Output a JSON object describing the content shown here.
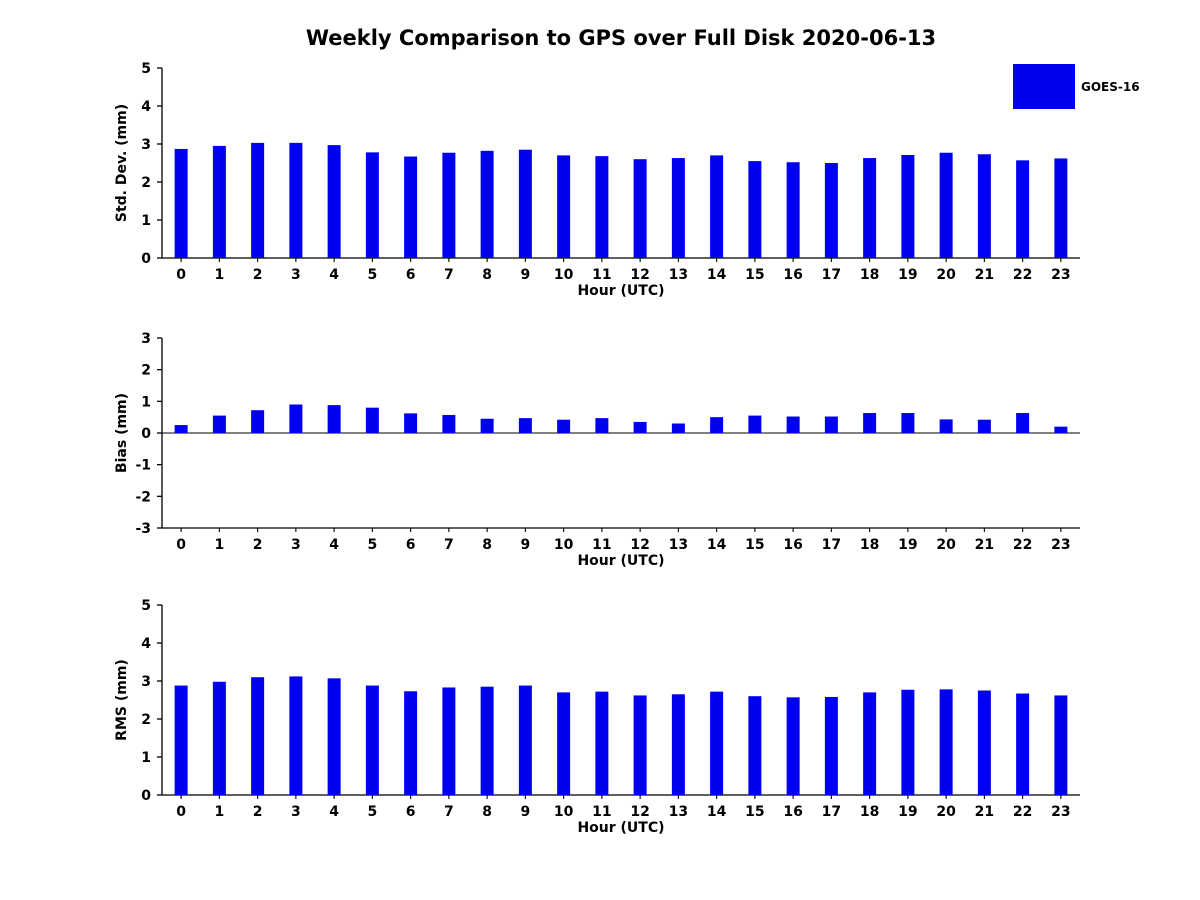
{
  "title": "Weekly Comparison to GPS over Full Disk 2020-06-13",
  "legend": {
    "label": "GOES-16",
    "color": "#0000F0"
  },
  "chart_data": [
    {
      "type": "bar",
      "name": "std-dev",
      "title": "",
      "xlabel": "Hour (UTC)",
      "ylabel": "Std. Dev. (mm)",
      "ylim": [
        0,
        5
      ],
      "yticks": [
        0,
        1,
        2,
        3,
        4,
        5
      ],
      "grid": false,
      "legend_position": "top-right",
      "color": "#0000F0",
      "categories": [
        "0",
        "1",
        "2",
        "3",
        "4",
        "5",
        "6",
        "7",
        "8",
        "9",
        "10",
        "11",
        "12",
        "13",
        "14",
        "15",
        "16",
        "17",
        "18",
        "19",
        "20",
        "21",
        "22",
        "23"
      ],
      "values": [
        2.87,
        2.95,
        3.03,
        3.03,
        2.97,
        2.78,
        2.67,
        2.77,
        2.82,
        2.85,
        2.7,
        2.68,
        2.6,
        2.63,
        2.7,
        2.55,
        2.52,
        2.5,
        2.63,
        2.71,
        2.77,
        2.73,
        2.57,
        2.62
      ]
    },
    {
      "type": "bar",
      "name": "bias",
      "title": "",
      "xlabel": "Hour (UTC)",
      "ylabel": "Bias (mm)",
      "ylim": [
        -3,
        3
      ],
      "yticks": [
        -3,
        -2,
        -1,
        0,
        1,
        2,
        3
      ],
      "grid": false,
      "color": "#0000F0",
      "categories": [
        "0",
        "1",
        "2",
        "3",
        "4",
        "5",
        "6",
        "7",
        "8",
        "9",
        "10",
        "11",
        "12",
        "13",
        "14",
        "15",
        "16",
        "17",
        "18",
        "19",
        "20",
        "21",
        "22",
        "23"
      ],
      "values": [
        0.25,
        0.55,
        0.72,
        0.9,
        0.88,
        0.8,
        0.62,
        0.57,
        0.45,
        0.47,
        0.42,
        0.47,
        0.35,
        0.3,
        0.5,
        0.55,
        0.52,
        0.52,
        0.63,
        0.63,
        0.43,
        0.42,
        0.63,
        0.2
      ]
    },
    {
      "type": "bar",
      "name": "rms",
      "title": "",
      "xlabel": "Hour (UTC)",
      "ylabel": "RMS (mm)",
      "ylim": [
        0,
        5
      ],
      "yticks": [
        0,
        1,
        2,
        3,
        4,
        5
      ],
      "grid": false,
      "color": "#0000F0",
      "categories": [
        "0",
        "1",
        "2",
        "3",
        "4",
        "5",
        "6",
        "7",
        "8",
        "9",
        "10",
        "11",
        "12",
        "13",
        "14",
        "15",
        "16",
        "17",
        "18",
        "19",
        "20",
        "21",
        "22",
        "23"
      ],
      "values": [
        2.88,
        2.98,
        3.1,
        3.12,
        3.07,
        2.88,
        2.73,
        2.83,
        2.85,
        2.88,
        2.7,
        2.72,
        2.62,
        2.65,
        2.72,
        2.6,
        2.57,
        2.58,
        2.7,
        2.77,
        2.78,
        2.75,
        2.67,
        2.62
      ]
    }
  ]
}
